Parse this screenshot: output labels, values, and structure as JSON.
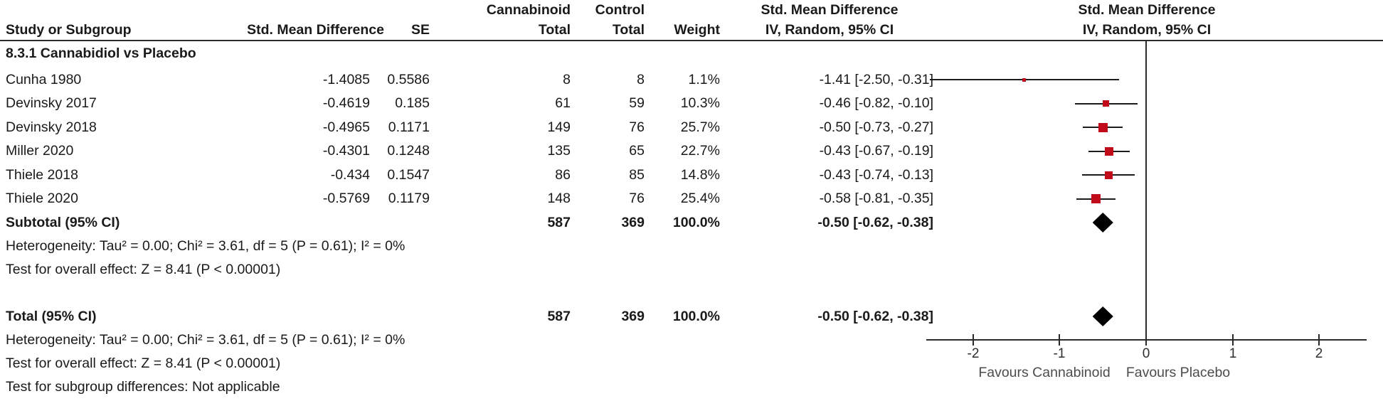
{
  "table": {
    "header1": {
      "cannabinoid": "Cannabinoid",
      "control": "Control",
      "smd_text": "Std. Mean Difference",
      "smd_plot": "Std. Mean Difference"
    },
    "header2": {
      "study": "Study or Subgroup",
      "smd": "Std. Mean Difference",
      "se": "SE",
      "total_treat": "Total",
      "total_ctrl": "Total",
      "weight": "Weight",
      "ci_text": "IV, Random, 95% CI",
      "ci_plot": "IV, Random, 95% CI"
    },
    "section_title": "8.3.1 Cannabidiol vs Placebo",
    "rows": [
      {
        "study": "Cunha 1980",
        "smd": "-1.4085",
        "se": "0.5586",
        "nt": "8",
        "nc": "8",
        "weight": "1.1%",
        "ci": "-1.41 [-2.50, -0.31]"
      },
      {
        "study": "Devinsky 2017",
        "smd": "-0.4619",
        "se": "0.185",
        "nt": "61",
        "nc": "59",
        "weight": "10.3%",
        "ci": "-0.46 [-0.82, -0.10]"
      },
      {
        "study": "Devinsky 2018",
        "smd": "-0.4965",
        "se": "0.1171",
        "nt": "149",
        "nc": "76",
        "weight": "25.7%",
        "ci": "-0.50 [-0.73, -0.27]"
      },
      {
        "study": "Miller 2020",
        "smd": "-0.4301",
        "se": "0.1248",
        "nt": "135",
        "nc": "65",
        "weight": "22.7%",
        "ci": "-0.43 [-0.67, -0.19]"
      },
      {
        "study": "Thiele 2018",
        "smd": "-0.434",
        "se": "0.1547",
        "nt": "86",
        "nc": "85",
        "weight": "14.8%",
        "ci": "-0.43 [-0.74, -0.13]"
      },
      {
        "study": "Thiele 2020",
        "smd": "-0.5769",
        "se": "0.1179",
        "nt": "148",
        "nc": "76",
        "weight": "25.4%",
        "ci": "-0.58 [-0.81, -0.35]"
      }
    ],
    "subtotal_row": {
      "label": "Subtotal (95% CI)",
      "nt": "587",
      "nc": "369",
      "weight": "100.0%",
      "ci": "-0.50 [-0.62, -0.38]"
    },
    "subgroup_footnotes": {
      "heterogeneity": "Heterogeneity: Tau² = 0.00; Chi² = 3.61, df = 5 (P = 0.61); I² = 0%",
      "overall_effect": "Test for overall effect: Z = 8.41 (P < 0.00001)"
    },
    "total_row": {
      "label": "Total (95% CI)",
      "nt": "587",
      "nc": "369",
      "weight": "100.0%",
      "ci": "-0.50 [-0.62, -0.38]"
    },
    "total_footnotes": {
      "heterogeneity": "Heterogeneity: Tau² = 0.00; Chi² = 3.61, df = 5 (P = 0.61); I² = 0%",
      "overall_effect": "Test for overall effect: Z = 8.41 (P < 0.00001)",
      "subgroup_diff": "Test for subgroup differences: Not applicable"
    }
  },
  "axis": {
    "ticks": [
      "-2",
      "-1",
      "0",
      "1",
      "2"
    ],
    "favours_left": "Favours Cannabinoid",
    "favours_right": "Favours Placebo"
  },
  "chart_data": {
    "type": "forest",
    "effect_measure": "Std. Mean Difference, IV, Random, 95% CI",
    "subgroup_label": "8.3.1 Cannabidiol vs Placebo",
    "x_axis": {
      "ticks": [
        -2,
        -1,
        0,
        1,
        2
      ],
      "range": [
        -2.55,
        2.55
      ],
      "zero_line": 0,
      "label_left": "Favours Cannabinoid",
      "label_right": "Favours Placebo"
    },
    "studies": [
      {
        "name": "Cunha 1980",
        "est": -1.4085,
        "se": 0.5586,
        "n_treat": 8,
        "n_ctrl": 8,
        "weight_pct": 1.1,
        "ci_low": -2.5,
        "ci_high": -0.31
      },
      {
        "name": "Devinsky 2017",
        "est": -0.4619,
        "se": 0.185,
        "n_treat": 61,
        "n_ctrl": 59,
        "weight_pct": 10.3,
        "ci_low": -0.82,
        "ci_high": -0.1
      },
      {
        "name": "Devinsky 2018",
        "est": -0.4965,
        "se": 0.1171,
        "n_treat": 149,
        "n_ctrl": 76,
        "weight_pct": 25.7,
        "ci_low": -0.73,
        "ci_high": -0.27
      },
      {
        "name": "Miller 2020",
        "est": -0.4301,
        "se": 0.1248,
        "n_treat": 135,
        "n_ctrl": 65,
        "weight_pct": 22.7,
        "ci_low": -0.67,
        "ci_high": -0.19
      },
      {
        "name": "Thiele 2018",
        "est": -0.434,
        "se": 0.1547,
        "n_treat": 86,
        "n_ctrl": 85,
        "weight_pct": 14.8,
        "ci_low": -0.74,
        "ci_high": -0.13
      },
      {
        "name": "Thiele 2020",
        "est": -0.5769,
        "se": 0.1179,
        "n_treat": 148,
        "n_ctrl": 76,
        "weight_pct": 25.4,
        "ci_low": -0.81,
        "ci_high": -0.35
      }
    ],
    "subtotal": {
      "label": "Subtotal (95% CI)",
      "est": -0.5,
      "ci_low": -0.62,
      "ci_high": -0.38,
      "n_treat": 587,
      "n_ctrl": 369,
      "weight_pct": 100.0
    },
    "total": {
      "label": "Total (95% CI)",
      "est": -0.5,
      "ci_low": -0.62,
      "ci_high": -0.38,
      "n_treat": 587,
      "n_ctrl": 369,
      "weight_pct": 100.0
    },
    "heterogeneity": {
      "tau2": 0.0,
      "chi2": 3.61,
      "df": 5,
      "p": 0.61,
      "i2_pct": 0
    },
    "overall_effect": {
      "z": 8.41,
      "p": "< 0.00001"
    },
    "marker_color": "#c20b1a",
    "diamond_color": "#000000",
    "line_color": "#1c1c1c"
  }
}
